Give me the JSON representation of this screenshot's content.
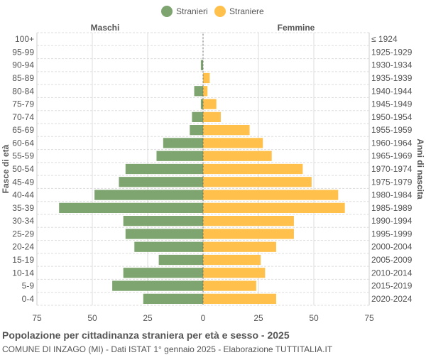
{
  "chart_data": {
    "type": "bar",
    "orientation": "horizontal-pyramid",
    "title": "Popolazione per cittadinanza straniera per età e sesso - 2025",
    "subtitle": "COMUNE DI INZAGO (MI) - Dati ISTAT 1° gennaio 2025 - Elaborazione TUTTITALIA.IT",
    "left_header": "Maschi",
    "right_header": "Femmine",
    "ylabel_left": "Fasce di età",
    "ylabel_right": "Anni di nascita",
    "xlim": [
      -75,
      75
    ],
    "xticks": [
      "75",
      "50",
      "25",
      "0",
      "25",
      "50",
      "75"
    ],
    "grid": true,
    "legend_position": "top",
    "categories": [
      "100+",
      "95-99",
      "90-94",
      "85-89",
      "80-84",
      "75-79",
      "70-74",
      "65-69",
      "60-64",
      "55-59",
      "50-54",
      "45-49",
      "40-44",
      "35-39",
      "30-34",
      "25-29",
      "20-24",
      "15-19",
      "10-14",
      "5-9",
      "0-4"
    ],
    "birth_years": [
      "≤ 1924",
      "1925-1929",
      "1930-1934",
      "1935-1939",
      "1940-1944",
      "1945-1949",
      "1950-1954",
      "1955-1959",
      "1960-1964",
      "1965-1969",
      "1970-1974",
      "1975-1979",
      "1980-1984",
      "1985-1989",
      "1990-1994",
      "1995-1999",
      "2000-2004",
      "2005-2009",
      "2010-2014",
      "2015-2019",
      "2020-2024"
    ],
    "series": [
      {
        "name": "Stranieri",
        "color": "#7ea56f",
        "values": [
          0,
          0,
          1,
          0,
          4,
          1,
          5,
          6,
          18,
          21,
          35,
          38,
          49,
          65,
          36,
          35,
          31,
          20,
          36,
          41,
          27
        ]
      },
      {
        "name": "Straniere",
        "color": "#ffc04c",
        "values": [
          0,
          0,
          0,
          3,
          2,
          6,
          8,
          21,
          27,
          31,
          45,
          49,
          61,
          64,
          41,
          41,
          33,
          26,
          28,
          24,
          33
        ]
      }
    ]
  }
}
